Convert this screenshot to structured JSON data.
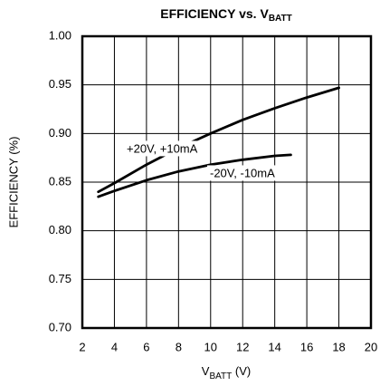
{
  "chart_data": {
    "type": "line",
    "title": {
      "text": "EFFICIENCY vs. V",
      "subscript": "BATT"
    },
    "x_label": {
      "text": "V",
      "subscript": "BATT",
      "suffix": " (V)"
    },
    "y_label": "EFFICIENCY (%)",
    "xlim": [
      2,
      20
    ],
    "xticks": [
      2,
      4,
      6,
      8,
      10,
      12,
      14,
      16,
      18,
      20
    ],
    "ylim": [
      0.7,
      1.0
    ],
    "yticks": [
      {
        "value": 1.0,
        "label": "1.00"
      },
      0.95,
      {
        "value": 0.9,
        "label": "0.90"
      },
      0.85,
      {
        "value": 0.8,
        "label": "0.80"
      },
      0.75,
      {
        "value": 0.7,
        "label": "0.70"
      }
    ],
    "grid": true,
    "series": [
      {
        "name": "+20V, +10mA",
        "color": "#000000",
        "x": [
          3,
          4,
          6,
          8,
          10,
          12,
          14,
          16,
          18
        ],
        "values": [
          0.84,
          0.849,
          0.868,
          0.885,
          0.9,
          0.914,
          0.926,
          0.937,
          0.947
        ]
      },
      {
        "name": "-20V, -10mA",
        "color": "#000000",
        "x": [
          3,
          4,
          6,
          8,
          10,
          12,
          14,
          15
        ],
        "values": [
          0.835,
          0.841,
          0.852,
          0.861,
          0.868,
          0.873,
          0.877,
          0.878
        ]
      }
    ]
  }
}
